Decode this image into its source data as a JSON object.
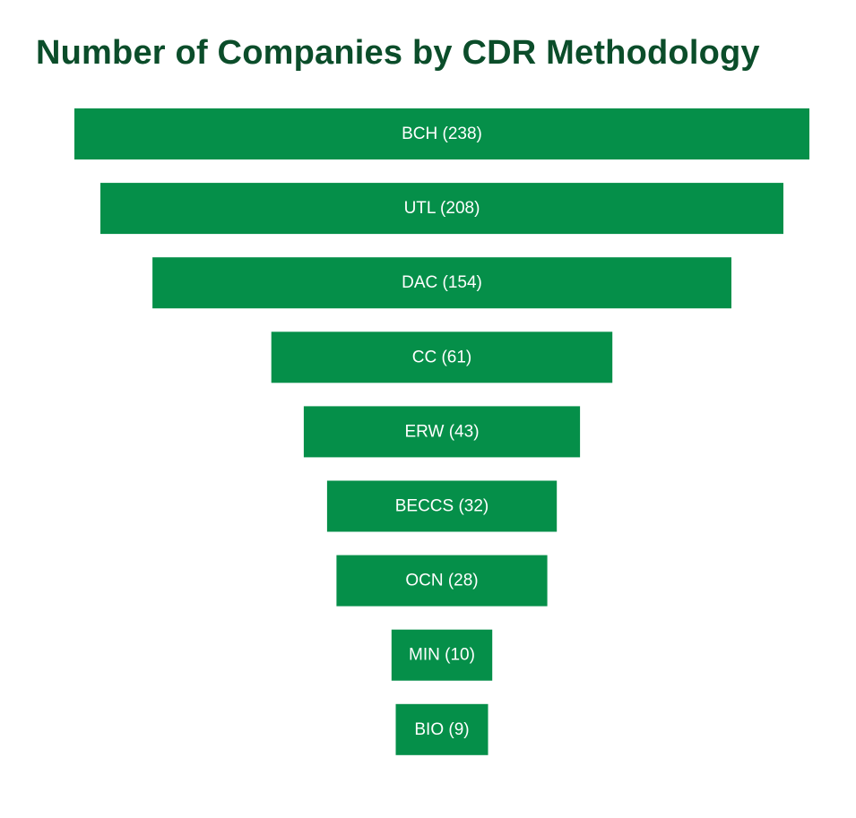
{
  "chart_data": {
    "type": "bar",
    "title": "Number of Companies by CDR Methodology",
    "categories": [
      "BCH",
      "UTL",
      "DAC",
      "CC",
      "ERW",
      "BECCS",
      "OCN",
      "MIN",
      "BIO"
    ],
    "values": [
      238,
      208,
      154,
      61,
      43,
      32,
      28,
      10,
      9
    ],
    "labels": [
      "BCH (238)",
      "UTL (208)",
      "DAC (154)",
      "CC (61)",
      "ERW (43)",
      "BECCS (32)",
      "OCN (28)",
      "MIN (10)",
      "BIO (9)"
    ],
    "legend": "none",
    "grid": false,
    "bar_color": "#058f49",
    "label_color": "#ffffff",
    "title_color": "#0b4d2a"
  }
}
